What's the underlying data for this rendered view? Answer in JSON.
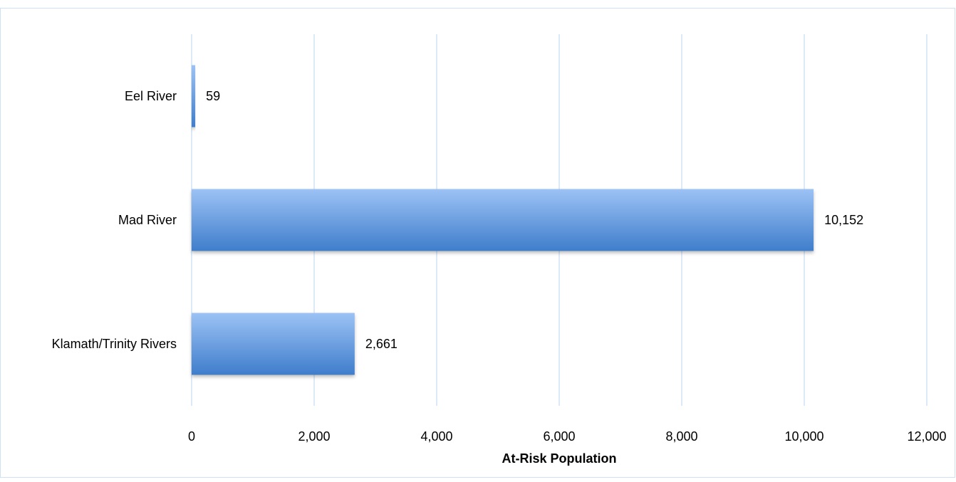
{
  "chart_data": {
    "type": "bar",
    "orientation": "horizontal",
    "categories": [
      "Eel River",
      "Mad River",
      "Klamath/Trinity Rivers"
    ],
    "values": [
      59,
      10152,
      2661
    ],
    "value_labels": [
      "59",
      "10,152",
      "2,661"
    ],
    "title": "",
    "xlabel": "At-Risk Population",
    "ylabel": "",
    "xlim": [
      0,
      12000
    ],
    "xticks": [
      0,
      2000,
      4000,
      6000,
      8000,
      10000,
      12000
    ],
    "xtick_labels": [
      "0",
      "2,000",
      "4,000",
      "6,000",
      "8,000",
      "10,000",
      "12,000"
    ],
    "grid": "vertical",
    "legend": "none",
    "colors": {
      "bar_top": "#9cc2f5",
      "bar_bottom": "#3f7dcb",
      "grid": "#cfe2f5",
      "frame": "#cfe2f5",
      "text": "#000000"
    }
  }
}
